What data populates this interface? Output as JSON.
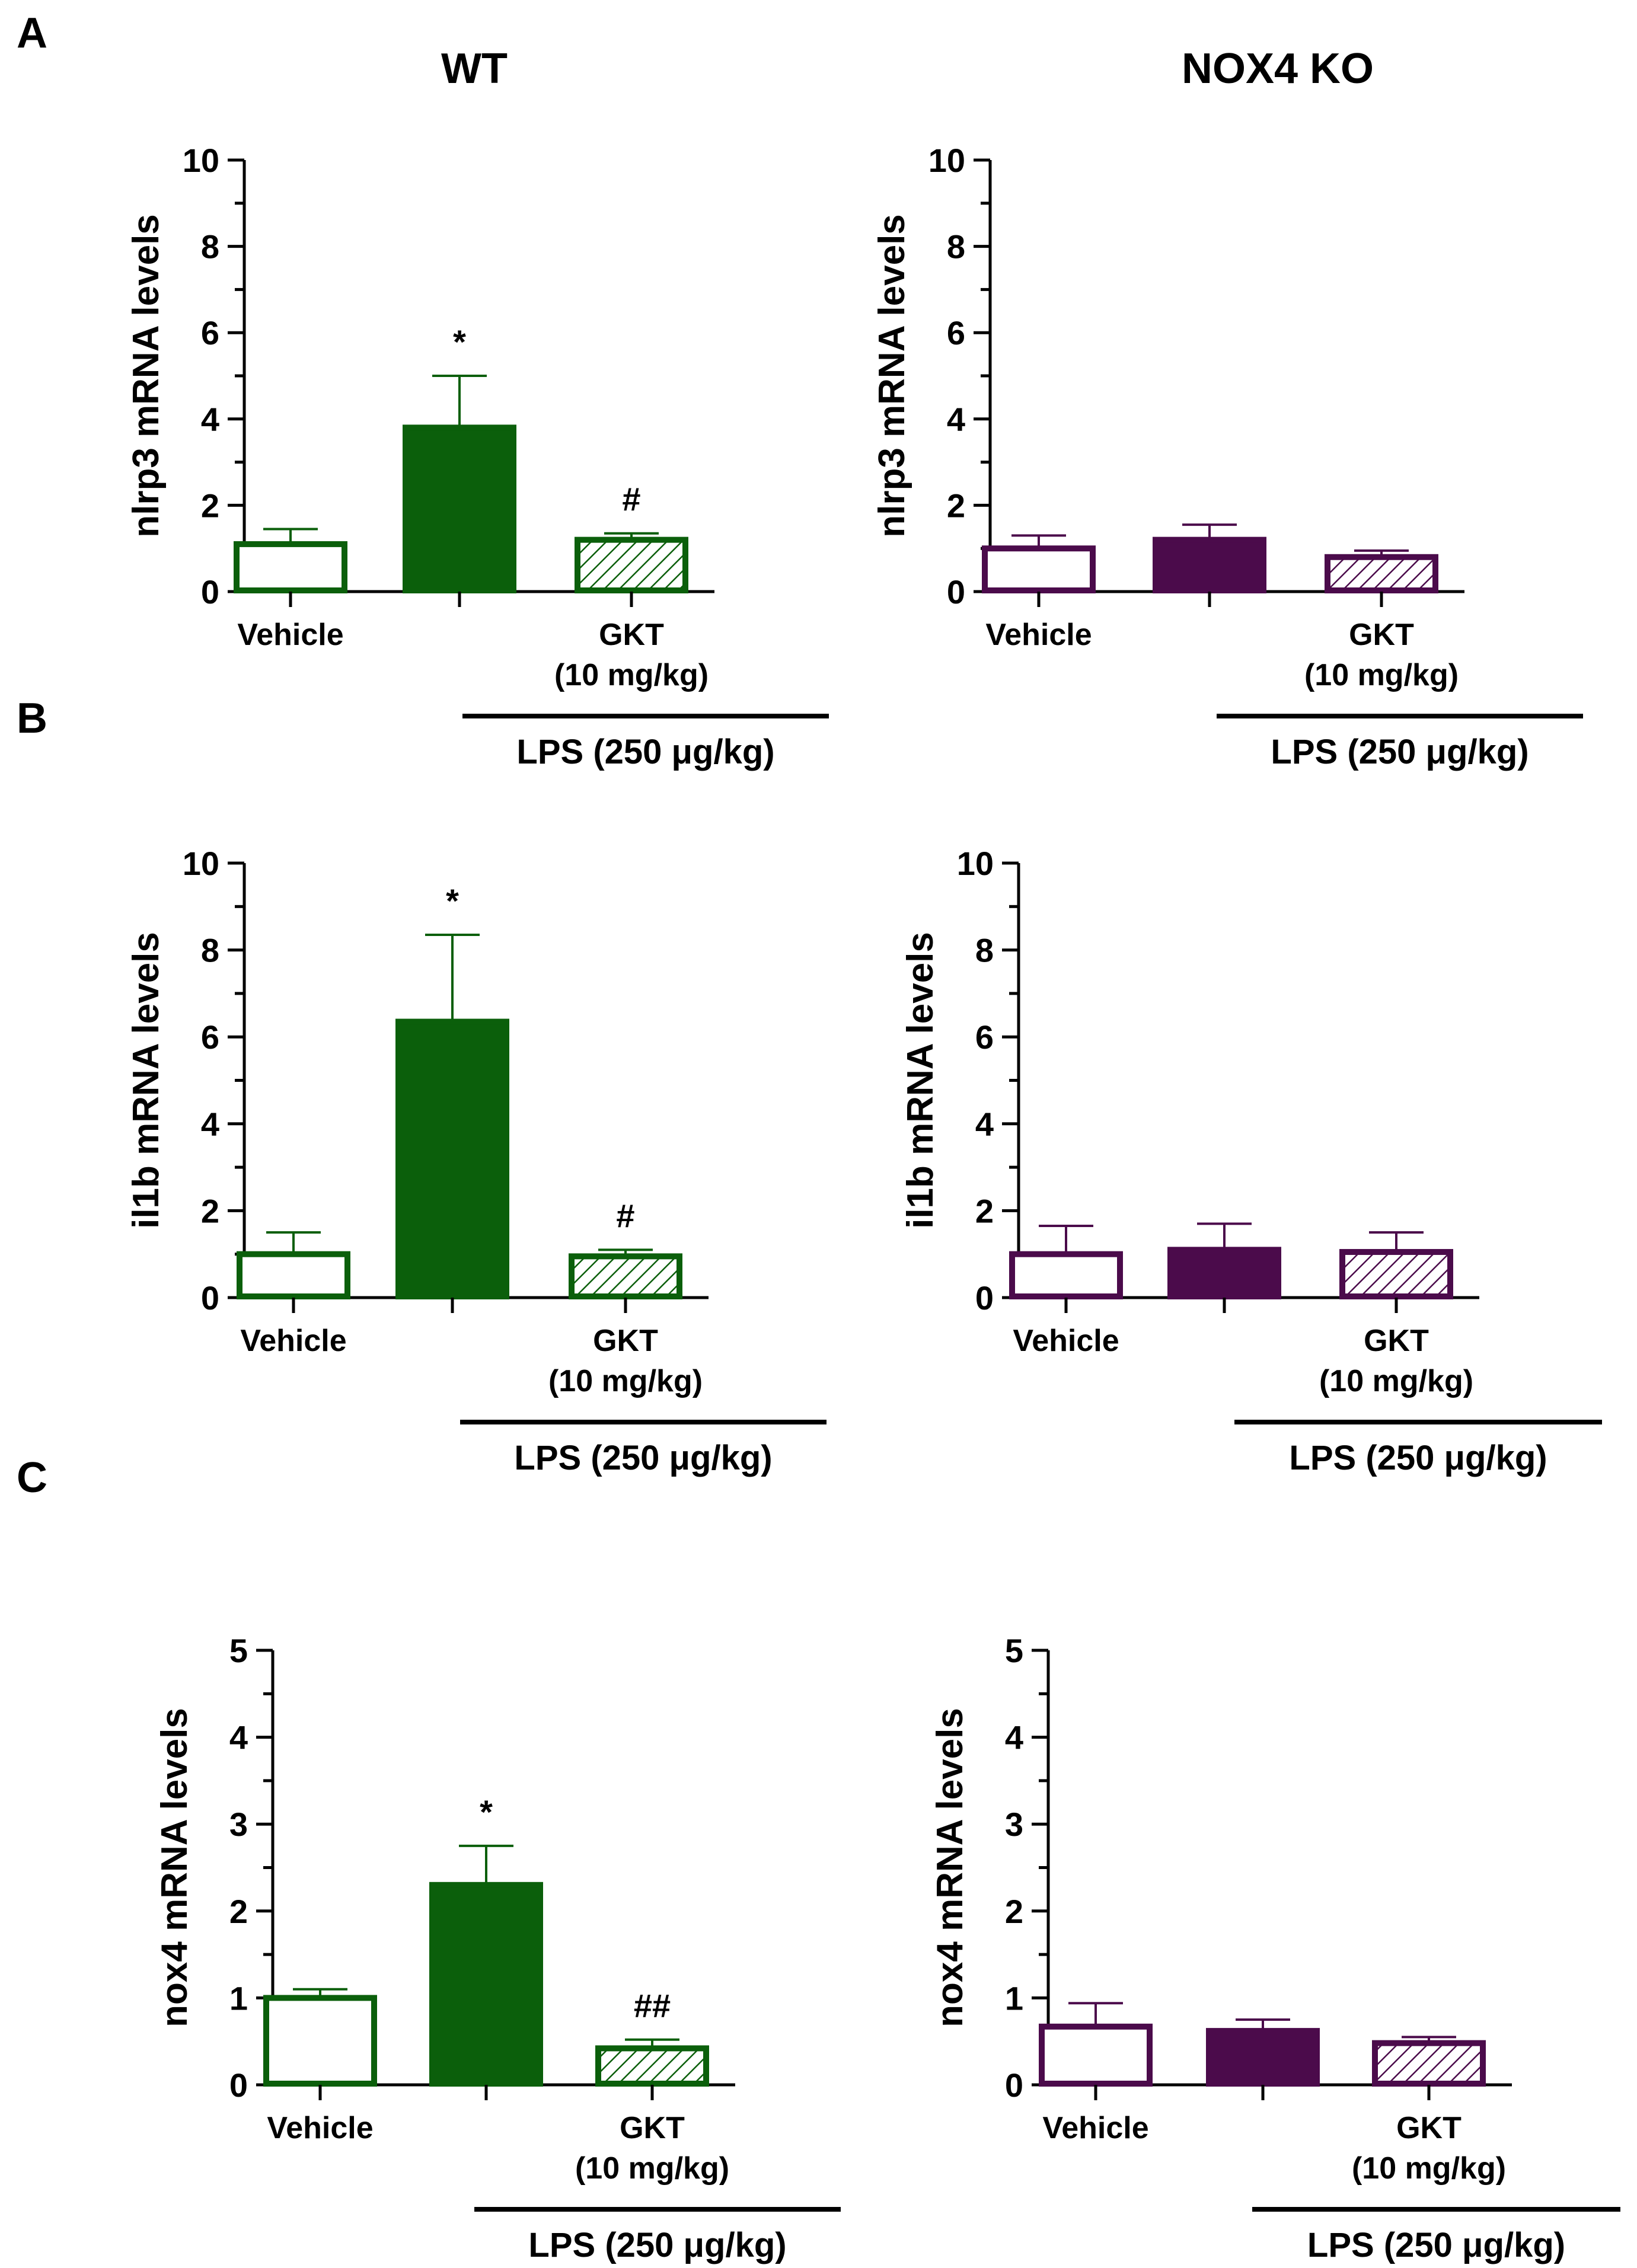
{
  "panel_labels": [
    "A",
    "B",
    "C"
  ],
  "column_titles": [
    "WT",
    "NOX4 KO"
  ],
  "colors": {
    "wt": "#0b5f0b",
    "ko": "#4b0b4b",
    "axis": "#000000",
    "background": "#ffffff"
  },
  "chart_data": [
    {
      "type": "bar",
      "panel": "A",
      "column": "WT",
      "ylabel": "nlrp3 mRNA levels",
      "ylim": [
        0,
        10
      ],
      "yticks": [
        "0",
        "2",
        "4",
        "6",
        "8",
        "10"
      ],
      "categories": [
        "Vehicle",
        "",
        "GKT"
      ],
      "category_sublabels": [
        "",
        "",
        "(10 mg/kg)"
      ],
      "bracket_label": "LPS (250 μg/kg)",
      "bar_styles": [
        "open",
        "filled",
        "hatched"
      ],
      "values": [
        1.1,
        3.8,
        1.2
      ],
      "errors": [
        0.35,
        1.2,
        0.15
      ],
      "annotations": [
        "",
        "*",
        "#"
      ]
    },
    {
      "type": "bar",
      "panel": "A",
      "column": "NOX4 KO",
      "ylabel": "nlrp3 mRNA levels",
      "ylim": [
        0,
        10
      ],
      "yticks": [
        "0",
        "2",
        "4",
        "6",
        "8",
        "10"
      ],
      "categories": [
        "Vehicle",
        "",
        "GKT"
      ],
      "category_sublabels": [
        "",
        "",
        "(10 mg/kg)"
      ],
      "bracket_label": "LPS (250 μg/kg)",
      "bar_styles": [
        "open",
        "filled",
        "hatched"
      ],
      "values": [
        1.0,
        1.2,
        0.8
      ],
      "errors": [
        0.3,
        0.35,
        0.15
      ],
      "annotations": [
        "",
        "",
        ""
      ]
    },
    {
      "type": "bar",
      "panel": "B",
      "column": "WT",
      "ylabel": "il1b mRNA levels",
      "ylim": [
        0,
        10
      ],
      "yticks": [
        "0",
        "2",
        "4",
        "6",
        "8",
        "10"
      ],
      "categories": [
        "Vehicle",
        "",
        "GKT"
      ],
      "category_sublabels": [
        "",
        "",
        "(10 mg/kg)"
      ],
      "bracket_label": "LPS (250 μg/kg)",
      "bar_styles": [
        "open",
        "filled",
        "hatched"
      ],
      "values": [
        1.0,
        6.35,
        0.95
      ],
      "errors": [
        0.5,
        2.0,
        0.15
      ],
      "annotations": [
        "",
        "*",
        "#"
      ]
    },
    {
      "type": "bar",
      "panel": "B",
      "column": "NOX4 KO",
      "ylabel": "il1b mRNA levels",
      "ylim": [
        0,
        10
      ],
      "yticks": [
        "0",
        "2",
        "4",
        "6",
        "8",
        "10"
      ],
      "categories": [
        "Vehicle",
        "",
        "GKT"
      ],
      "category_sublabels": [
        "",
        "",
        "(10 mg/kg)"
      ],
      "bracket_label": "LPS (250 μg/kg)",
      "bar_styles": [
        "open",
        "filled",
        "hatched"
      ],
      "values": [
        1.0,
        1.1,
        1.05
      ],
      "errors": [
        0.65,
        0.6,
        0.45
      ],
      "annotations": [
        "",
        "",
        ""
      ]
    },
    {
      "type": "bar",
      "panel": "C",
      "column": "WT",
      "ylabel": "nox4 mRNA levels",
      "ylim": [
        0,
        5
      ],
      "yticks": [
        "0",
        "1",
        "2",
        "3",
        "4",
        "5"
      ],
      "categories": [
        "Vehicle",
        "",
        "GKT"
      ],
      "category_sublabels": [
        "",
        "",
        "(10 mg/kg)"
      ],
      "bracket_label": "LPS (250 μg/kg)",
      "bar_styles": [
        "open",
        "filled",
        "hatched"
      ],
      "values": [
        1.0,
        2.3,
        0.42
      ],
      "errors": [
        0.1,
        0.45,
        0.1
      ],
      "annotations": [
        "",
        "*",
        "##"
      ]
    },
    {
      "type": "bar",
      "panel": "C",
      "column": "NOX4 KO",
      "ylabel": "nox4 mRNA levels",
      "ylim": [
        0,
        5
      ],
      "yticks": [
        "0",
        "1",
        "2",
        "3",
        "4",
        "5"
      ],
      "categories": [
        "Vehicle",
        "",
        "GKT"
      ],
      "category_sublabels": [
        "",
        "",
        "(10 mg/kg)"
      ],
      "bracket_label": "LPS (250 μg/kg)",
      "bar_styles": [
        "open",
        "filled",
        "hatched"
      ],
      "values": [
        0.67,
        0.62,
        0.48
      ],
      "errors": [
        0.27,
        0.13,
        0.07
      ],
      "annotations": [
        "",
        "",
        ""
      ]
    }
  ]
}
